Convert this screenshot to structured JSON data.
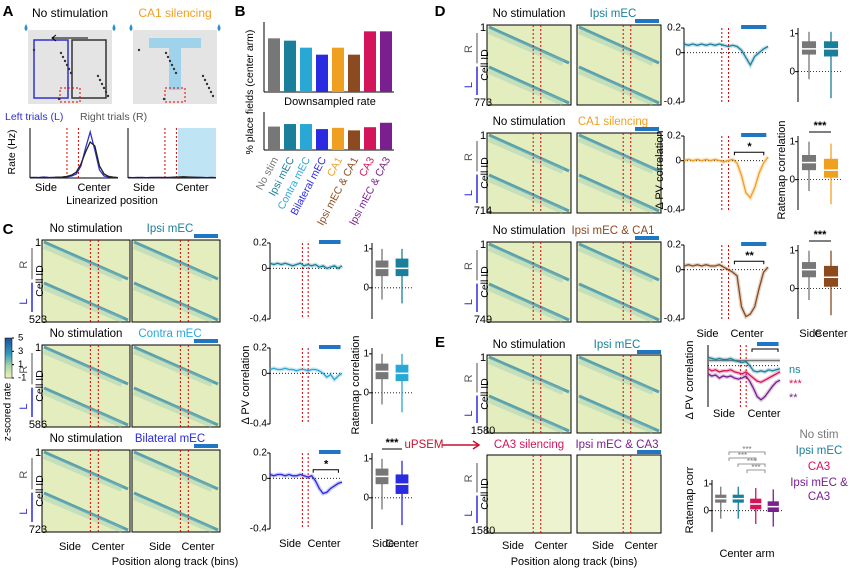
{
  "A": {
    "label": "A",
    "conditions": [
      "No stimulation",
      "CA1 silencing"
    ],
    "condition_colors": [
      "#000000",
      "#f0a020"
    ],
    "trials": [
      "Left trials (L)",
      "Right trials (R)"
    ],
    "trial_colors": [
      "#3030d0",
      "#555555"
    ],
    "y_label": "Rate (Hz)",
    "ylim": [
      0,
      25
    ],
    "x_ticks": [
      "Side",
      "Center"
    ],
    "x_label": "Linearized position",
    "plots": [
      {
        "traces": [
          {
            "color": "#3030d0",
            "values": [
              0.3,
              0.2,
              0.3,
              0.5,
              0.3,
              0.2,
              0.3,
              0.4,
              0.6,
              1,
              2,
              6,
              15,
              23,
              14,
              4,
              1,
              0.5,
              0.3,
              0.2
            ]
          },
          {
            "color": "#222222",
            "values": [
              0.2,
              0.3,
              0.2,
              0.3,
              0.2,
              0.3,
              0.4,
              0.5,
              0.8,
              1.5,
              3,
              7,
              13,
              18,
              16,
              6,
              2,
              0.8,
              0.4,
              0.2
            ]
          }
        ]
      },
      {
        "traces": [
          {
            "color": "#3030d0",
            "values": [
              0.2,
              0.2,
              0.3,
              0.2,
              0.2,
              0.3,
              0.2,
              0.2,
              0.3,
              0.2,
              0.3,
              0.4,
              0.5,
              0.4,
              0.3,
              0.3,
              0.2,
              0.2,
              0.2,
              0.2
            ]
          },
          {
            "color": "#222222",
            "values": [
              0.3,
              0.2,
              0.2,
              0.3,
              0.2,
              0.2,
              0.3,
              0.3,
              0.2,
              0.3,
              0.4,
              0.5,
              0.6,
              0.5,
              0.4,
              0.3,
              0.3,
              0.2,
              0.3,
              0.2
            ]
          }
        ]
      }
    ]
  },
  "B": {
    "label": "B",
    "y_label": "% place fields (center arm)",
    "subtitle": "Downsampled rate",
    "categories": [
      "No stim",
      "Ipsi mEC",
      "Contra mEC",
      "Bilateral mEC",
      "CA1",
      "Ipsi mEC & CA1",
      "CA3",
      "Ipsi mEC & CA3"
    ],
    "colors": [
      "#777777",
      "#1a7f9a",
      "#29a8d6",
      "#2a2ae0",
      "#f0a020",
      "#8b4a1f",
      "#d4145a",
      "#7a1f8f"
    ],
    "ylim": [
      0,
      60
    ],
    "top": [
      46,
      44,
      38,
      32,
      38,
      32,
      52,
      52
    ],
    "bottom": [
      37,
      41,
      41,
      33,
      35,
      31,
      36,
      43
    ]
  },
  "C": {
    "label": "C",
    "control": "No stimulation",
    "control_color": "#777777",
    "first_cell": 1,
    "R": "R",
    "L": "L",
    "cell_axis": "Cell ID",
    "pv_label": "Δ PV correlation",
    "box_label": "Ratemap correlation",
    "x_ticks": [
      "Side",
      "Center"
    ],
    "x_label": "Position along track (bins)",
    "pv_ylim": [
      -0.4,
      0.2
    ],
    "pv_yticks": [
      0.2,
      0,
      -0.4
    ],
    "box_ylim": [
      -0.8,
      1.15
    ],
    "box_yticks": [
      1,
      0
    ],
    "colorbar": {
      "label": "z-scored rate",
      "lim": [
        -1,
        5
      ],
      "ticks": [
        5,
        3,
        1,
        -1
      ]
    },
    "rows": [
      {
        "condition": "Ipsi mEC",
        "color": "#1a7f9a",
        "n": 523,
        "pv": [
          0.04,
          0.03,
          0.04,
          0.03,
          0.04,
          0.03,
          0.02,
          0.03,
          0.04,
          0.02,
          0.03,
          0.02,
          0.03,
          0.01,
          0.02,
          0.0,
          0.01,
          0.02,
          0.0,
          0.02
        ],
        "boxes": [
          [
            -0.3,
            0.3,
            0.5,
            0.7,
            1.0
          ],
          [
            -0.4,
            0.3,
            0.5,
            0.75,
            1.0
          ]
        ]
      },
      {
        "condition": "Contra mEC",
        "color": "#29a8d6",
        "n": 586,
        "pv": [
          0.03,
          0.04,
          0.03,
          0.03,
          0.04,
          0.03,
          0.03,
          0.02,
          0.03,
          0.03,
          0.02,
          0.03,
          0.03,
          0.02,
          0.0,
          -0.03,
          -0.01,
          -0.05,
          -0.02,
          0.0
        ],
        "boxes": [
          [
            -0.3,
            0.35,
            0.55,
            0.75,
            1.0
          ],
          [
            -0.5,
            0.3,
            0.5,
            0.72,
            1.0
          ]
        ]
      },
      {
        "condition": "Bilateral mEC",
        "color": "#2a2ae0",
        "n": 723,
        "pv": [
          0.03,
          0.02,
          0.03,
          0.03,
          0.02,
          0.03,
          0.02,
          0.02,
          0.03,
          0.02,
          0.01,
          0.02,
          -0.02,
          -0.08,
          -0.12,
          -0.11,
          -0.08,
          -0.06,
          -0.04,
          -0.03
        ],
        "pv_sig": "*",
        "boxes": [
          [
            -0.3,
            0.35,
            0.55,
            0.75,
            1.0
          ],
          [
            -0.7,
            0.1,
            0.35,
            0.6,
            0.95
          ]
        ],
        "box_sig": "***"
      }
    ]
  },
  "D": {
    "label": "D",
    "control": "No stimulation",
    "control_color": "#777777",
    "first_cell": 1,
    "R": "R",
    "L": "L",
    "cell_axis": "Cell ID",
    "pv_label": "Δ PV correlation",
    "box_label": "Ratemap correlation",
    "x_ticks": [
      "Side",
      "Center"
    ],
    "pv_ylim": [
      -0.4,
      0.2
    ],
    "pv_yticks": [
      0.2,
      0,
      -0.4
    ],
    "box_ylim": [
      -0.8,
      1.15
    ],
    "box_yticks": [
      1,
      0
    ],
    "rows": [
      {
        "condition": "Ipsi mEC",
        "color": "#1a7f9a",
        "n": 773,
        "pv": [
          0.07,
          0.06,
          0.07,
          0.06,
          0.07,
          0.06,
          0.07,
          0.06,
          0.07,
          0.06,
          0.05,
          0.06,
          0.05,
          0.02,
          -0.04,
          -0.1,
          -0.03,
          0.0,
          0.03,
          0.05
        ],
        "boxes": [
          [
            -0.2,
            0.45,
            0.6,
            0.8,
            1.05
          ],
          [
            -0.7,
            0.4,
            0.6,
            0.8,
            1.05
          ]
        ]
      },
      {
        "condition": "CA1 silencing",
        "color": "#f0a020",
        "n": 714,
        "pv": [
          0.0,
          0.01,
          0.0,
          0.01,
          0.0,
          0.01,
          0.0,
          0.01,
          0.0,
          -0.01,
          0.0,
          0.01,
          -0.02,
          -0.12,
          -0.26,
          -0.3,
          -0.22,
          -0.1,
          -0.02,
          0.03
        ],
        "pv_sig": "*",
        "boxes": [
          [
            -0.3,
            0.25,
            0.45,
            0.65,
            1.0
          ],
          [
            -0.65,
            0.05,
            0.25,
            0.55,
            0.95
          ]
        ],
        "box_sig": "***"
      },
      {
        "condition": "Ipsi mEC & CA1",
        "color": "#8b4a1f",
        "n": 749,
        "pv": [
          0.03,
          0.04,
          0.03,
          0.04,
          0.03,
          0.04,
          0.03,
          0.03,
          0.04,
          0.02,
          0.0,
          -0.02,
          -0.05,
          -0.3,
          -0.38,
          -0.36,
          -0.3,
          -0.15,
          -0.02,
          0.02
        ],
        "pv_sig": "**",
        "boxes": [
          [
            -0.3,
            0.3,
            0.5,
            0.7,
            1.0
          ],
          [
            -0.7,
            0.05,
            0.3,
            0.6,
            1.0
          ]
        ],
        "box_sig": "***"
      }
    ]
  },
  "E": {
    "label": "E",
    "drug": "uPSEM",
    "drug_color": "#c8102e",
    "first_cell": 1,
    "R": "R",
    "L": "L",
    "cell_axis": "Cell ID",
    "x_ticks": [
      "Side",
      "Center"
    ],
    "x_label": "Position along track (bins)",
    "rows": [
      {
        "conditions": [
          "No stimulation",
          "Ipsi mEC"
        ],
        "colors": [
          "#000000",
          "#1a7f9a"
        ],
        "n": 1580
      },
      {
        "conditions": [
          "CA3 silencing",
          "Ipsi mEC & CA3"
        ],
        "colors": [
          "#d4145a",
          "#7a1f8f"
        ],
        "n": 1580
      }
    ],
    "pv_label": "Δ PV correlation",
    "pv_ylim": [
      -0.4,
      0.2
    ],
    "traces": [
      {
        "name": "No stim",
        "color": "#777777",
        "values": [
          0.05,
          0.05,
          0.05,
          0.05,
          0.05,
          0.05,
          0.05,
          0.05,
          0.05,
          0.05,
          0.05,
          0.05,
          0.05,
          0.05,
          0.05,
          0.05,
          0.05,
          0.05,
          0.05,
          0.05
        ]
      },
      {
        "name": "Ipsi mEC",
        "color": "#1a7f9a",
        "values": [
          0.08,
          0.07,
          0.06,
          0.07,
          0.06,
          0.06,
          0.07,
          0.05,
          0.04,
          0.03,
          0.04,
          0.0,
          -0.05,
          -0.06,
          -0.05,
          -0.06,
          -0.04,
          -0.05,
          -0.04,
          -0.03
        ]
      },
      {
        "name": "CA3",
        "color": "#d4145a",
        "values": [
          -0.03,
          -0.05,
          -0.04,
          -0.06,
          -0.05,
          -0.05,
          -0.04,
          -0.06,
          -0.07,
          -0.08,
          -0.06,
          -0.09,
          -0.12,
          -0.15,
          -0.16,
          -0.14,
          -0.12,
          -0.1,
          -0.08,
          -0.06
        ]
      },
      {
        "name": "Ipsi mEC & CA3",
        "color": "#7a1f8f",
        "values": [
          -0.08,
          -0.1,
          -0.09,
          -0.12,
          -0.1,
          -0.11,
          -0.1,
          -0.12,
          -0.13,
          -0.12,
          -0.1,
          -0.15,
          -0.22,
          -0.3,
          -0.33,
          -0.3,
          -0.25,
          -0.2,
          -0.16,
          -0.14
        ]
      }
    ],
    "pv_sig": [
      {
        "text": "ns",
        "color": "#1a7f9a"
      },
      {
        "text": "***",
        "color": "#d4145a"
      },
      {
        "text": "**",
        "color": "#7a1f8f"
      }
    ],
    "box_label": "Ratemap corr",
    "box_x_label": "Center arm",
    "box_ylim": [
      -0.8,
      1.15
    ],
    "box_yticks": [
      1,
      0
    ],
    "boxes": [
      [
        -0.3,
        0.3,
        0.45,
        0.6,
        0.9
      ],
      [
        -0.3,
        0.3,
        0.45,
        0.6,
        0.9
      ],
      [
        -0.5,
        0.05,
        0.25,
        0.45,
        0.85
      ],
      [
        -0.6,
        -0.05,
        0.15,
        0.35,
        0.8
      ]
    ],
    "box_sig": [
      "***",
      "***",
      "***",
      "***"
    ]
  }
}
